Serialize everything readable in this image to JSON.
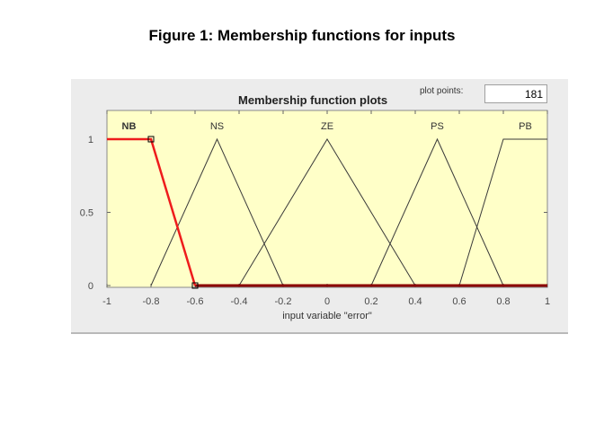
{
  "figure": {
    "caption": "Figure 1: Membership functions for inputs"
  },
  "panel": {
    "title": "Membership function plots",
    "plot_points_label": "plot points:",
    "plot_points_value": "181"
  },
  "colors": {
    "plot_bg": "#ffffc8",
    "line": "#3a3a3a",
    "selected": "#ee1c1c",
    "baseline": "#8b0000",
    "panel_bg": "#ececec"
  },
  "chart_data": {
    "type": "line",
    "title": "Membership function plots",
    "xlabel": "input variable \"error\"",
    "ylabel": "",
    "xlim": [
      -1,
      1
    ],
    "ylim": [
      0,
      1
    ],
    "x_ticks": [
      -1,
      -0.8,
      -0.6,
      -0.4,
      -0.2,
      0,
      0.2,
      0.4,
      0.6,
      0.8,
      1
    ],
    "x_tick_labels": [
      "-1",
      "-0.8",
      "-0.6",
      "-0.4",
      "-0.2",
      "0",
      "0.2",
      "0.4",
      "0.6",
      "0.8",
      "1"
    ],
    "y_ticks": [
      0,
      0.5,
      1
    ],
    "y_tick_labels": [
      "0",
      "0.5",
      "1"
    ],
    "selected": "NB",
    "series": [
      {
        "name": "NB",
        "type": "trapmf",
        "points": [
          [
            -1,
            1
          ],
          [
            -0.8,
            1
          ],
          [
            -0.6,
            0
          ],
          [
            1,
            0
          ]
        ]
      },
      {
        "name": "NS",
        "type": "trimf",
        "points": [
          [
            -0.8,
            0
          ],
          [
            -0.5,
            1
          ],
          [
            -0.2,
            0
          ]
        ]
      },
      {
        "name": "ZE",
        "type": "trimf",
        "points": [
          [
            -0.4,
            0
          ],
          [
            0,
            1
          ],
          [
            0.4,
            0
          ]
        ]
      },
      {
        "name": "PS",
        "type": "trimf",
        "points": [
          [
            0.2,
            0
          ],
          [
            0.5,
            1
          ],
          [
            0.8,
            0
          ]
        ]
      },
      {
        "name": "PB",
        "type": "trapmf",
        "points": [
          [
            0.6,
            0
          ],
          [
            0.8,
            1
          ],
          [
            1,
            1
          ]
        ]
      }
    ]
  }
}
